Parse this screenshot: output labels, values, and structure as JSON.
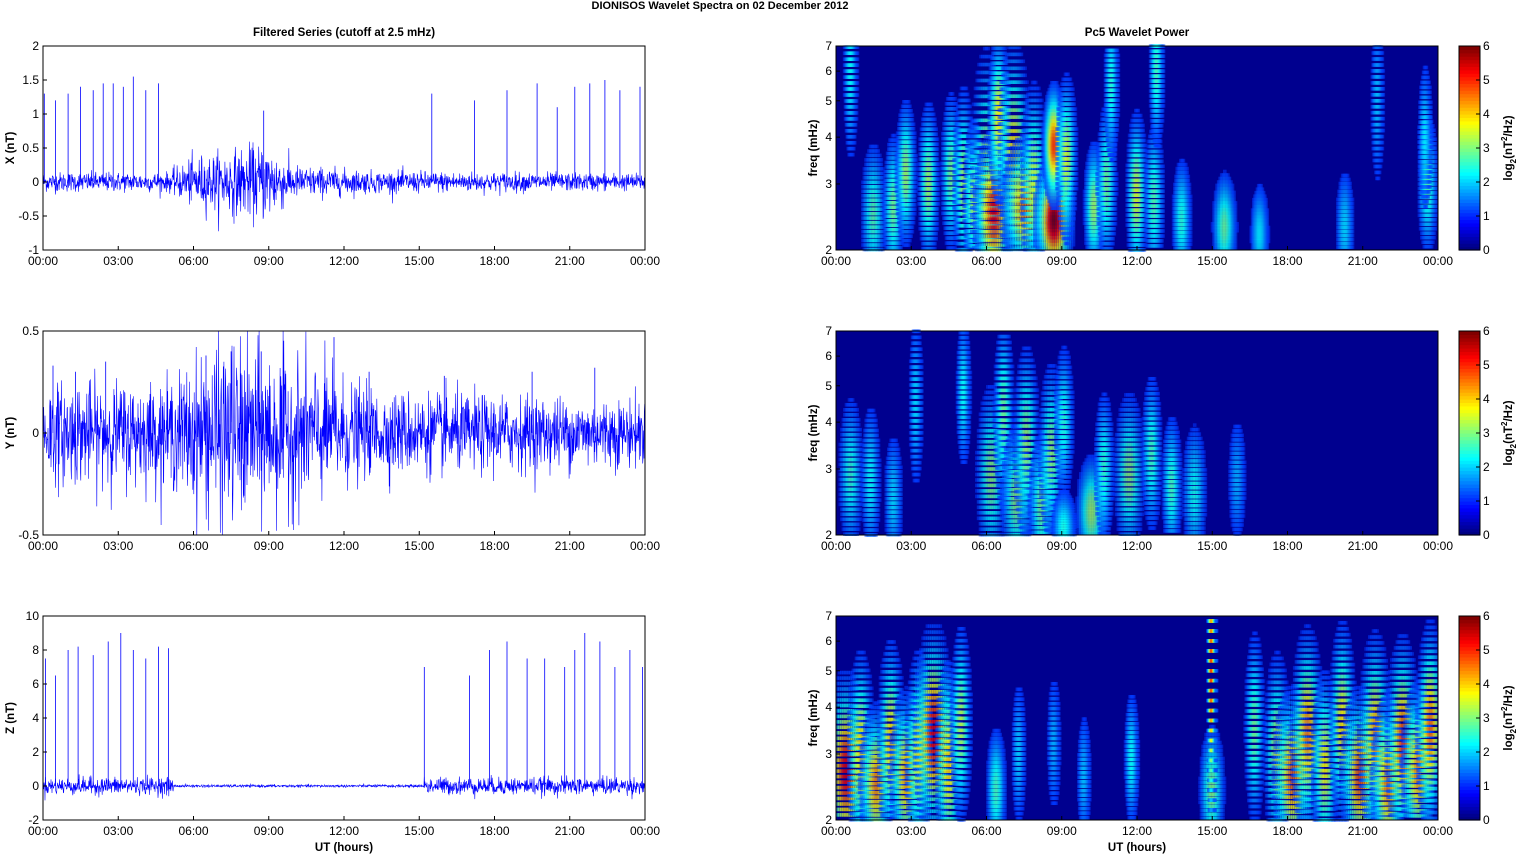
{
  "figure": {
    "title": "DIONISOS Wavelet Spectra on 02 December  2012",
    "left_column_title": "Filtered Series (cutoff at 2.5 mHz)",
    "right_column_title": "Pc5 Wavelet Power",
    "xlabel": "UT (hours)",
    "colorbar_label": "log2(nT2/Hz)",
    "colormap": "jet",
    "trace_color": "#0000ff"
  },
  "chart_data": [
    {
      "id": "x-series",
      "type": "line",
      "ylabel": "X (nT)",
      "xticks": [
        "00:00",
        "03:00",
        "06:00",
        "09:00",
        "12:00",
        "15:00",
        "18:00",
        "21:00",
        "00:00"
      ],
      "yticks": [
        "-1",
        "-0.5",
        "0",
        "0.5",
        "1",
        "1.5",
        "2"
      ],
      "ylim": [
        -1,
        2
      ],
      "xlim_hours": [
        0,
        24
      ],
      "series": [
        {
          "color": "#0000ff",
          "baseline_noise_nT": 0.06,
          "activity": [
            [
              0,
              0.07
            ],
            [
              5,
              0.07
            ],
            [
              6,
              0.18
            ],
            [
              9,
              0.28
            ],
            [
              10,
              0.12
            ],
            [
              13,
              0.08
            ],
            [
              24,
              0.06
            ]
          ],
          "spikes": [
            [
              0.05,
              1.3
            ],
            [
              0.5,
              1.2
            ],
            [
              1.0,
              1.3
            ],
            [
              1.5,
              1.4
            ],
            [
              2.0,
              1.35
            ],
            [
              2.4,
              1.45
            ],
            [
              2.8,
              1.45
            ],
            [
              3.2,
              1.4
            ],
            [
              3.6,
              1.55
            ],
            [
              4.1,
              1.35
            ],
            [
              4.6,
              1.45
            ],
            [
              8.8,
              1.05
            ],
            [
              15.5,
              1.3
            ],
            [
              17.2,
              1.2
            ],
            [
              18.5,
              1.35
            ],
            [
              19.7,
              1.45
            ],
            [
              20.5,
              1.1
            ],
            [
              21.2,
              1.4
            ],
            [
              21.8,
              1.45
            ],
            [
              22.4,
              1.5
            ],
            [
              23.0,
              1.35
            ],
            [
              23.8,
              1.4
            ]
          ]
        }
      ]
    },
    {
      "id": "y-series",
      "type": "line",
      "ylabel": "Y (nT)",
      "xticks": [
        "00:00",
        "03:00",
        "06:00",
        "09:00",
        "12:00",
        "15:00",
        "18:00",
        "21:00",
        "00:00"
      ],
      "yticks": [
        "-0.5",
        "0",
        "0.5"
      ],
      "ylim": [
        -0.5,
        0.5
      ],
      "xlim_hours": [
        0,
        24
      ],
      "series": [
        {
          "color": "#0000ff",
          "baseline_noise_nT": 0.06,
          "activity": [
            [
              0,
              0.12
            ],
            [
              5,
              0.12
            ],
            [
              7,
              0.22
            ],
            [
              9,
              0.2
            ],
            [
              11,
              0.16
            ],
            [
              13,
              0.1
            ],
            [
              24,
              0.08
            ]
          ],
          "spikes": [
            [
              0.4,
              0.33
            ],
            [
              1.3,
              0.3
            ],
            [
              2.5,
              0.35
            ],
            [
              6.5,
              0.38
            ],
            [
              7.5,
              0.4
            ],
            [
              8.7,
              0.4
            ],
            [
              11.6,
              0.47
            ],
            [
              13.0,
              0.3
            ],
            [
              16.0,
              0.28
            ],
            [
              19.5,
              0.3
            ],
            [
              22.0,
              0.32
            ]
          ]
        }
      ]
    },
    {
      "id": "z-series",
      "type": "line",
      "ylabel": "Z (nT)",
      "xticks": [
        "00:00",
        "03:00",
        "06:00",
        "09:00",
        "12:00",
        "15:00",
        "18:00",
        "21:00",
        "00:00"
      ],
      "yticks": [
        "-2",
        "0",
        "2",
        "4",
        "6",
        "8",
        "10"
      ],
      "ylim": [
        -2,
        10
      ],
      "xlim_hours": [
        0,
        24
      ],
      "series": [
        {
          "color": "#0000ff",
          "baseline_noise_nT": 0.25,
          "quiet_interval_hours": [
            5.2,
            15.2
          ],
          "spikes": [
            [
              0.1,
              7.5
            ],
            [
              0.5,
              6.5
            ],
            [
              1.0,
              8.0
            ],
            [
              1.4,
              8.2
            ],
            [
              2.0,
              7.7
            ],
            [
              2.6,
              8.5
            ],
            [
              3.1,
              9.0
            ],
            [
              3.6,
              8.0
            ],
            [
              4.1,
              7.5
            ],
            [
              4.6,
              8.2
            ],
            [
              5.0,
              8.1
            ],
            [
              15.2,
              7.0
            ],
            [
              17.0,
              6.5
            ],
            [
              17.8,
              8.0
            ],
            [
              18.5,
              8.5
            ],
            [
              19.3,
              7.5
            ],
            [
              20.0,
              7.5
            ],
            [
              20.8,
              7.0
            ],
            [
              21.2,
              8.0
            ],
            [
              21.6,
              9.0
            ],
            [
              22.2,
              8.5
            ],
            [
              22.8,
              7.0
            ],
            [
              23.4,
              8.0
            ],
            [
              23.9,
              7.0
            ]
          ]
        }
      ]
    },
    {
      "id": "x-wavelet",
      "type": "heatmap",
      "ylabel": "freq (mHz)",
      "xticks": [
        "00:00",
        "03:00",
        "06:00",
        "09:00",
        "12:00",
        "15:00",
        "18:00",
        "21:00",
        "00:00"
      ],
      "yticks": [
        "2",
        "3",
        "4",
        "5",
        "6",
        "7"
      ],
      "ylim_mHz": [
        2,
        7
      ],
      "y_scale": "log",
      "cbar_ticks": [
        "0",
        "1",
        "2",
        "3",
        "4",
        "5",
        "6"
      ],
      "clim": [
        0,
        6
      ],
      "blobs": [
        [
          0.6,
          6.0,
          0.15,
          0.6,
          1.8
        ],
        [
          1.5,
          2.5,
          0.25,
          0.45,
          2.3
        ],
        [
          2.3,
          2.6,
          0.2,
          0.45,
          2.5
        ],
        [
          2.8,
          3.2,
          0.2,
          0.45,
          2.8
        ],
        [
          3.7,
          3.0,
          0.2,
          0.5,
          2.8
        ],
        [
          4.6,
          3.2,
          0.2,
          0.5,
          2.5
        ],
        [
          5.1,
          3.0,
          0.2,
          0.6,
          2.8
        ],
        [
          5.5,
          2.7,
          0.2,
          0.5,
          2.8
        ],
        [
          6.0,
          3.0,
          0.3,
          0.8,
          3.4
        ],
        [
          6.3,
          2.5,
          0.35,
          0.45,
          5.3
        ],
        [
          6.5,
          4.5,
          0.2,
          0.5,
          3.5
        ],
        [
          7.1,
          3.5,
          0.3,
          0.7,
          3.8
        ],
        [
          7.5,
          2.6,
          0.4,
          0.4,
          4.2
        ],
        [
          7.9,
          3.0,
          0.25,
          0.6,
          3.2
        ],
        [
          8.7,
          2.4,
          0.35,
          0.35,
          6.0
        ],
        [
          8.7,
          3.8,
          0.2,
          0.35,
          4.8
        ],
        [
          9.2,
          3.5,
          0.2,
          0.5,
          3.2
        ],
        [
          10.3,
          2.6,
          0.2,
          0.4,
          2.8
        ],
        [
          10.8,
          3.0,
          0.2,
          0.5,
          2.5
        ],
        [
          12.0,
          2.8,
          0.2,
          0.5,
          3.2
        ],
        [
          12.7,
          2.7,
          0.2,
          0.5,
          2.3
        ],
        [
          13.8,
          2.4,
          0.2,
          0.4,
          2.0
        ],
        [
          15.5,
          2.3,
          0.25,
          0.35,
          2.4
        ],
        [
          16.9,
          2.2,
          0.2,
          0.35,
          1.6
        ],
        [
          20.3,
          2.3,
          0.2,
          0.4,
          1.5
        ],
        [
          21.6,
          5.0,
          0.15,
          0.6,
          1.3
        ],
        [
          23.6,
          3.0,
          0.2,
          0.45,
          2.3
        ],
        [
          23.5,
          4.0,
          0.15,
          0.5,
          1.6
        ],
        [
          11.0,
          5.5,
          0.15,
          0.5,
          2.0
        ],
        [
          12.8,
          6.0,
          0.15,
          0.5,
          2.2
        ]
      ]
    },
    {
      "id": "y-wavelet",
      "type": "heatmap",
      "ylabel": "freq (mHz)",
      "xticks": [
        "00:00",
        "03:00",
        "06:00",
        "09:00",
        "12:00",
        "15:00",
        "18:00",
        "21:00",
        "00:00"
      ],
      "yticks": [
        "2",
        "3",
        "4",
        "5",
        "6",
        "7"
      ],
      "ylim_mHz": [
        2,
        7
      ],
      "y_scale": "log",
      "cbar_ticks": [
        "0",
        "1",
        "2",
        "3",
        "4",
        "5",
        "6"
      ],
      "clim": [
        0,
        6
      ],
      "blobs": [
        [
          0.6,
          2.9,
          0.25,
          0.5,
          2.1
        ],
        [
          1.4,
          2.8,
          0.2,
          0.5,
          1.8
        ],
        [
          2.3,
          2.5,
          0.2,
          0.45,
          1.5
        ],
        [
          3.2,
          4.5,
          0.15,
          0.6,
          1.5
        ],
        [
          5.1,
          4.8,
          0.15,
          0.5,
          1.8
        ],
        [
          6.2,
          2.9,
          0.3,
          0.55,
          2.7
        ],
        [
          6.7,
          4.2,
          0.2,
          0.6,
          2.5
        ],
        [
          7.2,
          2.5,
          0.3,
          0.45,
          2.7
        ],
        [
          7.6,
          3.5,
          0.25,
          0.6,
          2.8
        ],
        [
          8.2,
          2.4,
          0.25,
          0.45,
          2.5
        ],
        [
          8.6,
          3.3,
          0.25,
          0.55,
          2.7
        ],
        [
          9.1,
          4.0,
          0.2,
          0.5,
          2.0
        ],
        [
          10.2,
          2.3,
          0.3,
          0.35,
          2.8
        ],
        [
          10.7,
          3.0,
          0.2,
          0.5,
          2.1
        ],
        [
          11.7,
          2.9,
          0.3,
          0.5,
          2.7
        ],
        [
          12.6,
          3.3,
          0.2,
          0.5,
          2.2
        ],
        [
          13.4,
          2.7,
          0.2,
          0.45,
          2.2
        ],
        [
          14.3,
          2.6,
          0.25,
          0.45,
          1.9
        ],
        [
          16.0,
          2.8,
          0.2,
          0.45,
          1.2
        ],
        [
          9.1,
          2.1,
          0.25,
          0.25,
          1.9
        ]
      ]
    },
    {
      "id": "z-wavelet",
      "type": "heatmap",
      "ylabel": "freq (mHz)",
      "xticks": [
        "00:00",
        "03:00",
        "06:00",
        "09:00",
        "12:00",
        "15:00",
        "18:00",
        "21:00",
        "00:00"
      ],
      "yticks": [
        "2",
        "3",
        "4",
        "5",
        "6",
        "7"
      ],
      "ylim_mHz": [
        2,
        7
      ],
      "y_scale": "log",
      "cbar_ticks": [
        "0",
        "1",
        "2",
        "3",
        "4",
        "5",
        "6"
      ],
      "clim": [
        0,
        6
      ],
      "active_intervals_hours": [
        [
          0,
          5.2
        ],
        [
          14.9,
          24
        ]
      ],
      "blobs": [
        [
          0.4,
          2.7,
          0.35,
          0.55,
          5.3
        ],
        [
          1.0,
          3.0,
          0.25,
          0.6,
          3.8
        ],
        [
          1.6,
          2.5,
          0.3,
          0.45,
          4.2
        ],
        [
          2.2,
          3.2,
          0.25,
          0.6,
          3.8
        ],
        [
          2.8,
          2.6,
          0.3,
          0.5,
          4.0
        ],
        [
          3.3,
          3.0,
          0.25,
          0.6,
          3.5
        ],
        [
          3.9,
          3.4,
          0.35,
          0.6,
          5.3
        ],
        [
          4.5,
          2.8,
          0.25,
          0.6,
          3.8
        ],
        [
          5.0,
          3.6,
          0.2,
          0.6,
          3.0
        ],
        [
          6.4,
          2.4,
          0.2,
          0.4,
          2.2
        ],
        [
          7.3,
          3.0,
          0.15,
          0.5,
          1.4
        ],
        [
          8.7,
          3.2,
          0.15,
          0.5,
          1.2
        ],
        [
          9.9,
          2.6,
          0.15,
          0.45,
          1.3
        ],
        [
          11.8,
          2.9,
          0.15,
          0.45,
          1.8
        ],
        [
          15.0,
          2.4,
          0.25,
          0.4,
          2.6
        ],
        [
          16.7,
          3.5,
          0.2,
          0.6,
          2.5
        ],
        [
          17.6,
          3.0,
          0.25,
          0.6,
          3.2
        ],
        [
          18.2,
          2.6,
          0.35,
          0.5,
          4.5
        ],
        [
          18.8,
          3.4,
          0.3,
          0.6,
          4.3
        ],
        [
          19.5,
          2.8,
          0.25,
          0.55,
          3.5
        ],
        [
          20.2,
          3.6,
          0.25,
          0.6,
          3.6
        ],
        [
          20.9,
          2.6,
          0.35,
          0.5,
          4.6
        ],
        [
          21.5,
          3.3,
          0.3,
          0.6,
          4.2
        ],
        [
          22.0,
          2.5,
          0.3,
          0.5,
          4.3
        ],
        [
          22.6,
          3.2,
          0.3,
          0.6,
          4.8
        ],
        [
          23.2,
          2.7,
          0.3,
          0.5,
          4.2
        ],
        [
          23.7,
          3.5,
          0.25,
          0.6,
          4.5
        ],
        [
          15.0,
          5.0,
          0.08,
          1.0,
          5.0
        ]
      ]
    }
  ]
}
